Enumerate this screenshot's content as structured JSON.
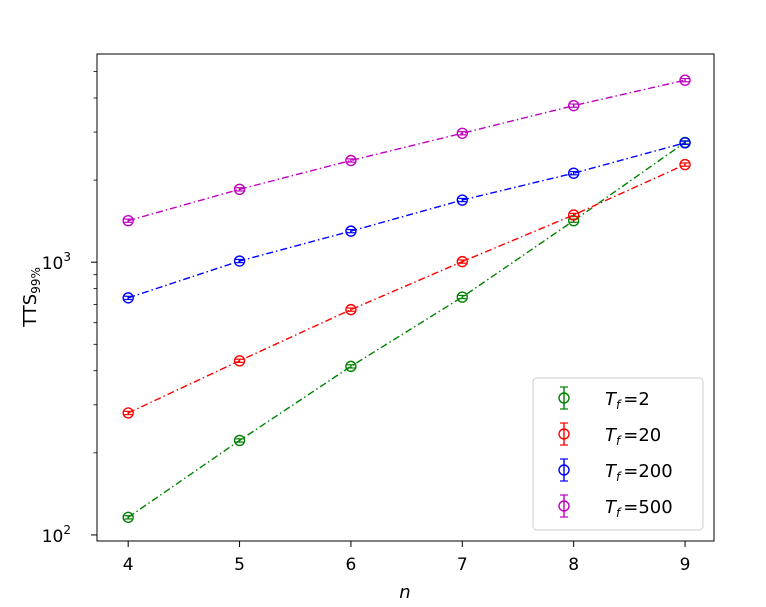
{
  "chart_data": {
    "type": "line",
    "x": [
      4,
      5,
      6,
      7,
      8,
      9
    ],
    "xticks": [
      "4",
      "5",
      "6",
      "7",
      "8",
      "9"
    ],
    "xlabel": "n",
    "ylabel": "TTS",
    "ylabel_sub": "99%",
    "yscale": "log",
    "ylim": [
      95,
      5800
    ],
    "xlim": [
      3.72,
      9.26
    ],
    "yticks": [
      {
        "base": "10",
        "exp": "2",
        "value": 100
      },
      {
        "base": "10",
        "exp": "3",
        "value": 1000
      }
    ],
    "grid": false,
    "legend_position": "lower-right",
    "series": [
      {
        "name": "=2",
        "symbol": "T",
        "subscript": "f",
        "color": "#008000",
        "values": [
          116,
          222,
          415,
          745,
          1420,
          2750
        ]
      },
      {
        "name": "=20",
        "symbol": "T",
        "subscript": "f",
        "color": "#ff0000",
        "values": [
          280,
          435,
          670,
          1005,
          1490,
          2280
        ]
      },
      {
        "name": "=200",
        "symbol": "T",
        "subscript": "f",
        "color": "#0000ff",
        "values": [
          740,
          1010,
          1300,
          1690,
          2120,
          2740
        ]
      },
      {
        "name": "=500",
        "symbol": "T",
        "subscript": "f",
        "color": "#bf00bf",
        "values": [
          1420,
          1850,
          2360,
          2970,
          3750,
          4650
        ]
      }
    ]
  }
}
